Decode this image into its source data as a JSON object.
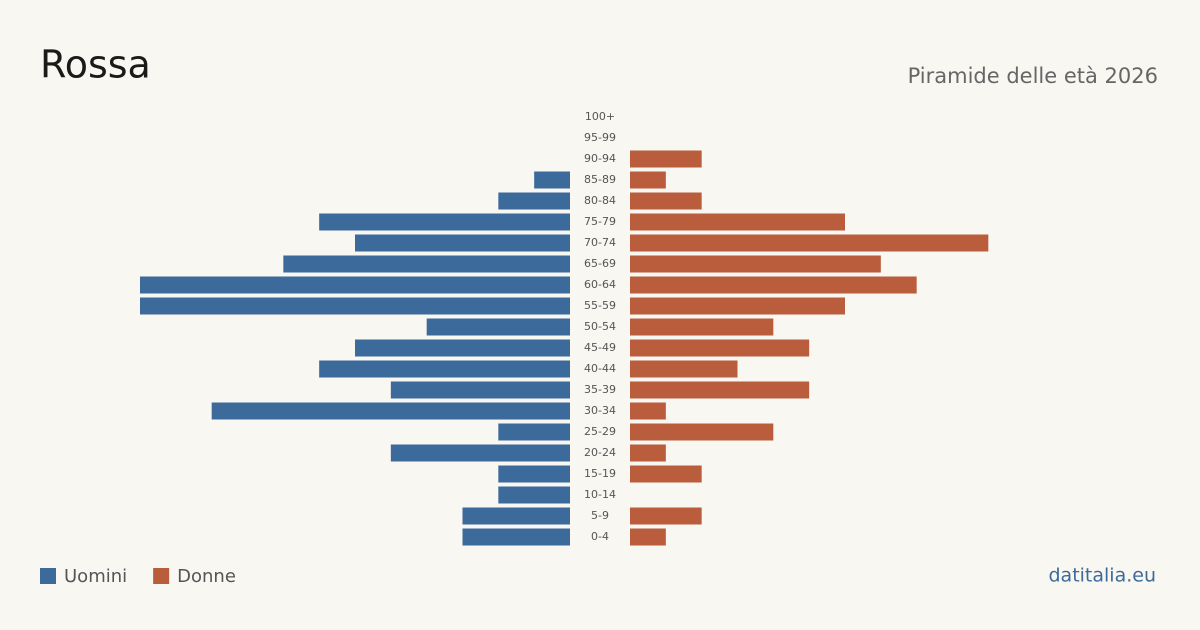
{
  "chart_data": {
    "type": "pyramid",
    "title": "Rossa",
    "subtitle": "Piramide delle età 2026",
    "source": "datitalia.eu",
    "categories": [
      "100+",
      "95-99",
      "90-94",
      "85-89",
      "80-84",
      "75-79",
      "70-74",
      "65-69",
      "60-64",
      "55-59",
      "50-54",
      "45-49",
      "40-44",
      "35-39",
      "30-34",
      "25-29",
      "20-24",
      "15-19",
      "10-14",
      "5-9",
      "0-4"
    ],
    "series": [
      {
        "name": "Uomini",
        "color": "#3b6a9b",
        "values": [
          0,
          0,
          0,
          1,
          2,
          7,
          6,
          8,
          12,
          12,
          4,
          6,
          7,
          5,
          10,
          2,
          5,
          2,
          2,
          3,
          3
        ]
      },
      {
        "name": "Donne",
        "color": "#b95d3d",
        "values": [
          0,
          0,
          2,
          1,
          2,
          6,
          10,
          7,
          8,
          6,
          4,
          5,
          3,
          5,
          1,
          4,
          1,
          2,
          0,
          2,
          1
        ]
      }
    ]
  }
}
